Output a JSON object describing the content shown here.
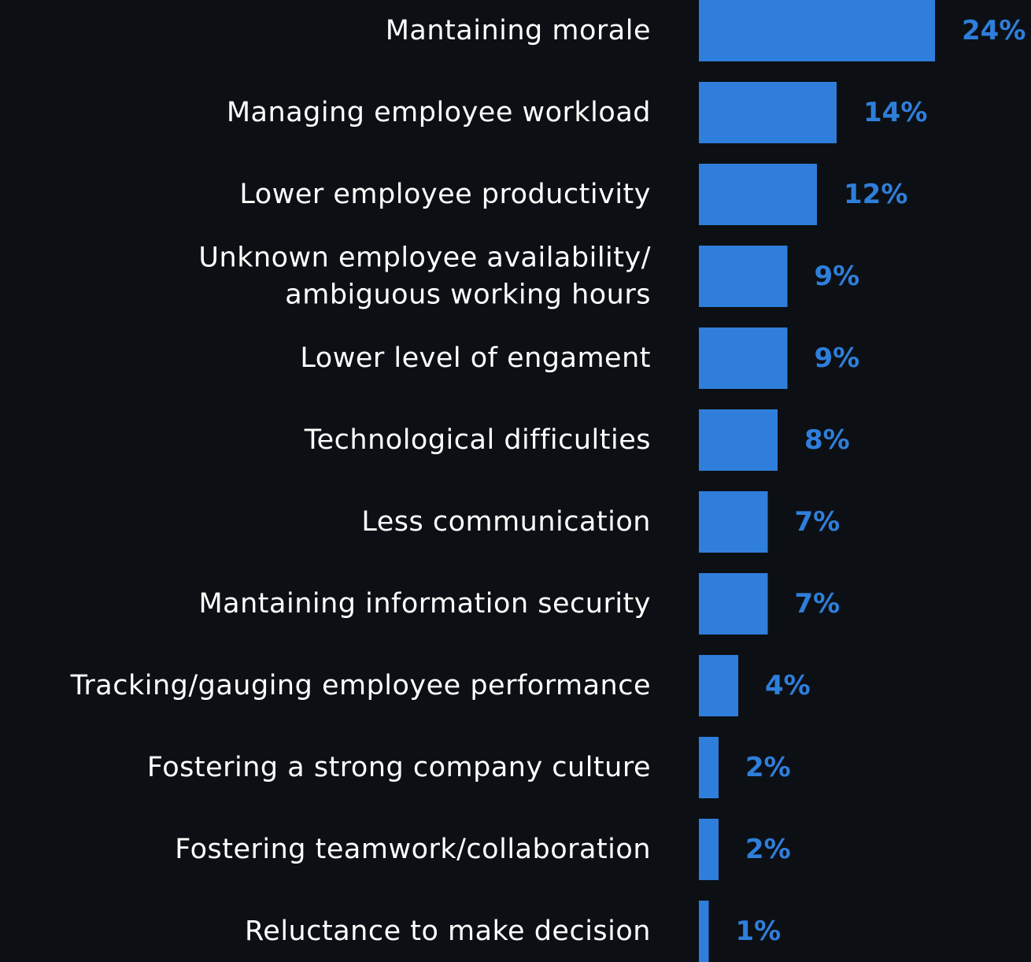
{
  "chart_data": {
    "type": "bar",
    "orientation": "horizontal",
    "categories": [
      [
        "Mantaining morale"
      ],
      [
        "Managing employee workload"
      ],
      [
        "Lower employee productivity"
      ],
      [
        "Unknown employee availability/",
        "ambiguous working hours"
      ],
      [
        "Lower level of engament"
      ],
      [
        "Technological difficulties"
      ],
      [
        "Less communication"
      ],
      [
        "Mantaining information security"
      ],
      [
        "Tracking/gauging employee performance"
      ],
      [
        "Fostering a strong company culture"
      ],
      [
        "Fostering teamwork/collaboration"
      ],
      [
        "Reluctance to make decision"
      ]
    ],
    "values": [
      24,
      14,
      12,
      9,
      9,
      8,
      7,
      7,
      4,
      2,
      2,
      1
    ],
    "value_labels": [
      "24%",
      "14%",
      "12%",
      "9%",
      "9%",
      "8%",
      "7%",
      "7%",
      "4%",
      "2%",
      "2%",
      "1%"
    ],
    "value_suffix": "%",
    "xlim": [
      0,
      24
    ],
    "grid": false,
    "legend": "none",
    "colors": {
      "background": "#0c1014",
      "bar": "#2f7edb",
      "value_label": "#2f7edb",
      "category_label": "#ffffff"
    }
  }
}
